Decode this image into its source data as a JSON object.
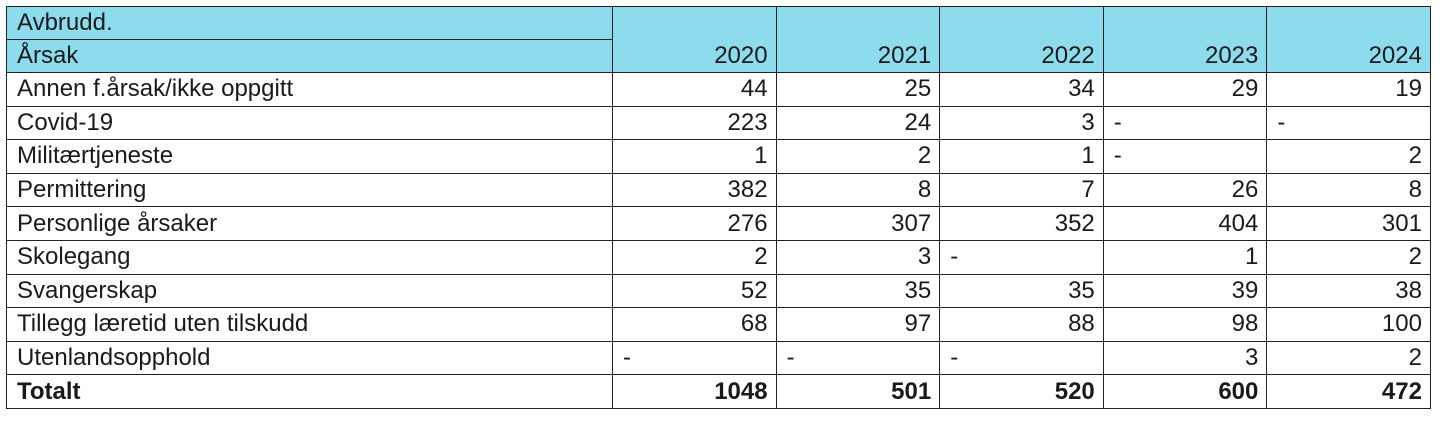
{
  "table": {
    "header": {
      "top_label": "Avbrudd.",
      "sub_label": "Årsak",
      "years": [
        "2020",
        "2021",
        "2022",
        "2023",
        "2024"
      ]
    },
    "rows": [
      {
        "label": "Annen f.årsak/ikke oppgitt",
        "values": [
          "44",
          "25",
          "34",
          "29",
          "19"
        ]
      },
      {
        "label": "Covid-19",
        "values": [
          "223",
          "24",
          "3",
          "-",
          "-"
        ]
      },
      {
        "label": "Militærtjeneste",
        "values": [
          "1",
          "2",
          "1",
          "-",
          "2"
        ]
      },
      {
        "label": "Permittering",
        "values": [
          "382",
          "8",
          "7",
          "26",
          "8"
        ]
      },
      {
        "label": "Personlige årsaker",
        "values": [
          "276",
          "307",
          "352",
          "404",
          "301"
        ]
      },
      {
        "label": "Skolegang",
        "values": [
          "2",
          "3",
          "-",
          "1",
          "2"
        ]
      },
      {
        "label": "Svangerskap",
        "values": [
          "52",
          "35",
          "35",
          "39",
          "38"
        ]
      },
      {
        "label": "Tillegg læretid uten tilskudd",
        "values": [
          "68",
          "97",
          "88",
          "98",
          "100"
        ]
      },
      {
        "label": "Utenlandsopphold",
        "values": [
          "-",
          "-",
          "-",
          "3",
          "2"
        ]
      }
    ],
    "total": {
      "label": "Totalt",
      "values": [
        "1048",
        "501",
        "520",
        "600",
        "472"
      ]
    }
  },
  "colors": {
    "header_bg": "#8ddced",
    "border": "#222222"
  }
}
